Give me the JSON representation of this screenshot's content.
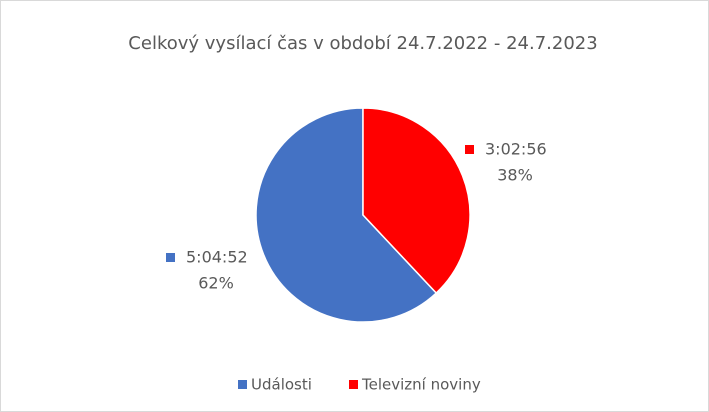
{
  "chart_data": {
    "type": "pie",
    "title": "Celkový vysílací čas v období 24.7.2022 - 24.7.2023",
    "categories": [
      "Události",
      "Televizní noviny"
    ],
    "values": [
      62,
      38
    ],
    "value_labels": [
      "62%",
      "38%"
    ],
    "durations": [
      "5:04:52",
      "3:02:56"
    ],
    "colors": [
      "#4472c4",
      "#ff0000"
    ],
    "legend": "bottom"
  }
}
